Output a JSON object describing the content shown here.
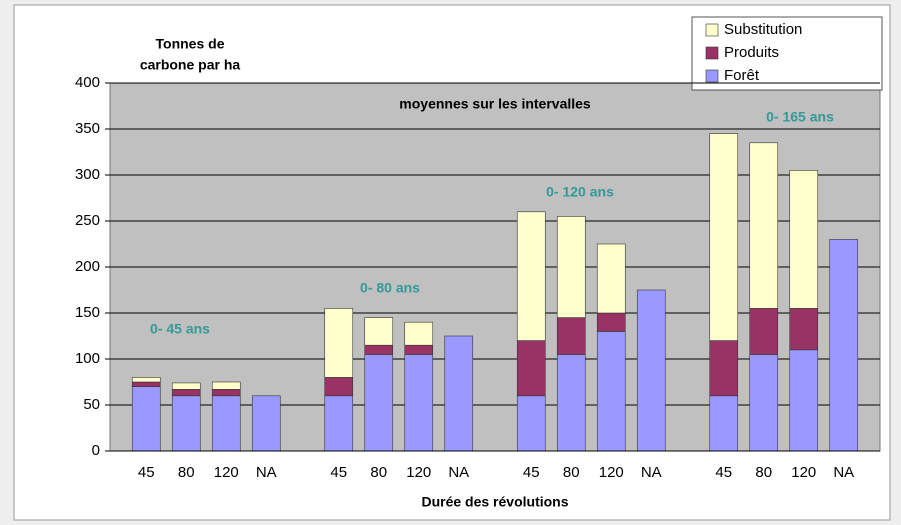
{
  "chart_data": {
    "type": "stacked-bar",
    "ylabel_lines": [
      "Tonnes de",
      "carbone par ha"
    ],
    "subtitle": "moyennes sur les intervalles",
    "xlabel": "Durée des révolutions",
    "groups": [
      {
        "annotation": "0- 45 ans",
        "categories": [
          "45",
          "80",
          "120",
          "NA"
        ]
      },
      {
        "annotation": "0- 80 ans",
        "categories": [
          "45",
          "80",
          "120",
          "NA"
        ]
      },
      {
        "annotation": "0- 120 ans",
        "categories": [
          "45",
          "80",
          "120",
          "NA"
        ]
      },
      {
        "annotation": "0- 165 ans",
        "categories": [
          "45",
          "80",
          "120",
          "NA"
        ]
      }
    ],
    "series": [
      {
        "name": "Forêt",
        "color": "#9999ff",
        "values": [
          [
            70,
            60,
            60,
            60
          ],
          [
            60,
            105,
            105,
            125
          ],
          [
            60,
            105,
            130,
            175
          ],
          [
            60,
            105,
            110,
            230
          ]
        ]
      },
      {
        "name": "Produits",
        "color": "#993366",
        "values": [
          [
            5,
            7,
            7,
            null
          ],
          [
            20,
            10,
            10,
            null
          ],
          [
            60,
            40,
            20,
            null
          ],
          [
            60,
            50,
            45,
            null
          ]
        ]
      },
      {
        "name": "Substitution",
        "color": "#ffffcc",
        "values": [
          [
            5,
            7,
            8,
            null
          ],
          [
            75,
            30,
            25,
            null
          ],
          [
            140,
            110,
            75,
            null
          ],
          [
            225,
            180,
            150,
            null
          ]
        ]
      }
    ],
    "ylim": [
      0,
      400
    ],
    "yticks": [
      0,
      50,
      100,
      150,
      200,
      250,
      300,
      350,
      400
    ],
    "grid": true,
    "legend": "top-right"
  }
}
